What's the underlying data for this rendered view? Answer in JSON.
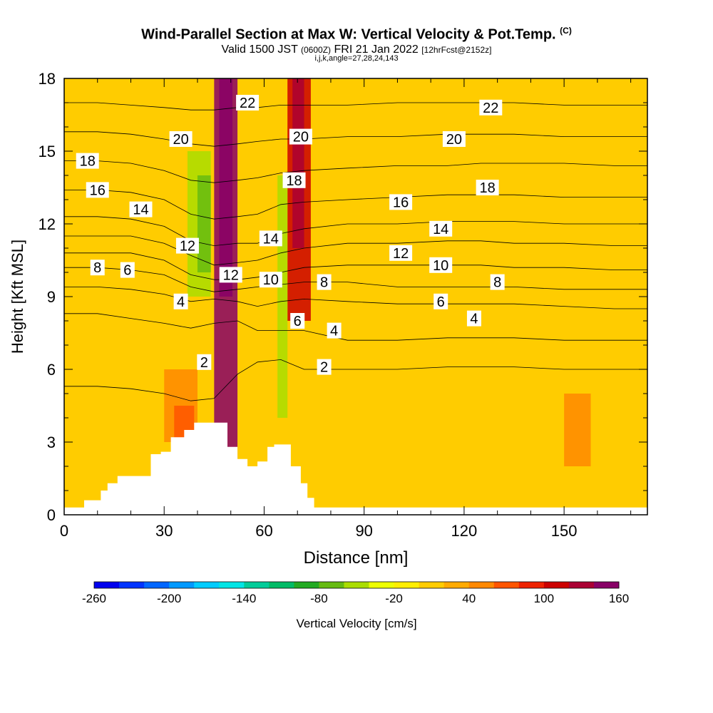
{
  "title_main": "Wind-Parallel Section at Max W: Vertical Velocity & Pot.Temp.",
  "title_mark": "(C)",
  "subtitle_a": "Valid 1500 JST",
  "subtitle_b": "(0600Z)",
  "subtitle_c": "FRI 21 Jan 2022",
  "subtitle_d": "[12hrFcst@2152z]",
  "subsub": "i,j,k,angle=27,28,24,143",
  "chart_data": {
    "type": "heatmap",
    "title": "Wind-Parallel Section at Max W: Vertical Velocity & Pot.Temp.",
    "xlabel": "Distance [nm]",
    "ylabel": "Height [Kft MSL]",
    "xlim": [
      0,
      175
    ],
    "ylim": [
      0,
      18
    ],
    "xticks": [
      0,
      30,
      60,
      90,
      120,
      150
    ],
    "yticks": [
      0,
      3,
      6,
      9,
      12,
      15,
      18
    ],
    "colorbar": {
      "label": "Vertical Velocity [cm/s]",
      "ticks": [
        -260,
        -200,
        -140,
        -80,
        -20,
        40,
        100,
        160
      ],
      "levels": [
        -260,
        -240,
        -220,
        -200,
        -180,
        -160,
        -140,
        -120,
        -100,
        -80,
        -60,
        -40,
        -20,
        0,
        20,
        40,
        60,
        80,
        100,
        120,
        140,
        160
      ],
      "colors": [
        "#0000ee",
        "#0033ff",
        "#0066ff",
        "#0099ff",
        "#00ccff",
        "#00e5e5",
        "#00cc99",
        "#00bb66",
        "#22aa22",
        "#66bb11",
        "#aadd00",
        "#eeff00",
        "#ffee00",
        "#ffcc00",
        "#ffaa00",
        "#ff8800",
        "#ff5500",
        "#ee2200",
        "#cc0000",
        "#aa0033",
        "#880066"
      ]
    },
    "terrain_profile": [
      [
        0,
        0.3
      ],
      [
        6,
        0.3
      ],
      [
        6,
        0.6
      ],
      [
        11,
        0.6
      ],
      [
        11,
        1.0
      ],
      [
        13,
        1.0
      ],
      [
        13,
        1.3
      ],
      [
        16,
        1.3
      ],
      [
        16,
        1.6
      ],
      [
        26,
        1.6
      ],
      [
        26,
        2.5
      ],
      [
        29,
        2.5
      ],
      [
        29,
        2.6
      ],
      [
        32,
        2.6
      ],
      [
        32,
        3.2
      ],
      [
        36,
        3.2
      ],
      [
        36,
        3.5
      ],
      [
        39,
        3.5
      ],
      [
        39,
        3.8
      ],
      [
        49,
        3.8
      ],
      [
        49,
        2.8
      ],
      [
        52,
        2.8
      ],
      [
        52,
        2.3
      ],
      [
        55,
        2.3
      ],
      [
        55,
        2.0
      ],
      [
        58,
        2.0
      ],
      [
        58,
        2.2
      ],
      [
        61,
        2.2
      ],
      [
        61,
        2.8
      ],
      [
        63,
        2.8
      ],
      [
        63,
        2.9
      ],
      [
        68,
        2.9
      ],
      [
        68,
        2.0
      ],
      [
        71,
        2.0
      ],
      [
        71,
        1.3
      ],
      [
        73,
        1.3
      ],
      [
        73,
        0.7
      ],
      [
        75,
        0.7
      ],
      [
        75,
        0.3
      ],
      [
        175,
        0.3
      ]
    ],
    "theta_contours": [
      {
        "value": 2,
        "y": [
          5.3,
          5.3,
          5.2,
          5.0,
          4.7,
          4.8,
          5.8,
          6.3,
          6.4,
          6.0,
          6.0,
          6.0,
          6.1,
          6.1,
          6.1,
          6.0,
          6.0,
          6.0
        ]
      },
      {
        "value": 4,
        "y": [
          8.3,
          8.3,
          8.1,
          7.9,
          7.7,
          7.9,
          8.0,
          7.6,
          7.6,
          7.6,
          7.2,
          7.2,
          7.3,
          7.3,
          7.3,
          7.2,
          7.2,
          7.2
        ]
      },
      {
        "value": 6,
        "y": [
          9.4,
          9.4,
          9.3,
          9.1,
          8.8,
          8.9,
          8.8,
          8.6,
          8.8,
          8.9,
          8.8,
          8.7,
          8.7,
          8.7,
          8.7,
          8.6,
          8.5,
          8.5
        ]
      },
      {
        "value": 8,
        "y": [
          10.2,
          10.2,
          10.1,
          9.9,
          9.4,
          9.2,
          9.3,
          9.4,
          9.5,
          9.6,
          9.6,
          9.4,
          9.4,
          9.4,
          9.4,
          9.3,
          9.3,
          9.3
        ]
      },
      {
        "value": 10,
        "y": [
          10.8,
          10.8,
          10.8,
          10.5,
          9.9,
          9.7,
          9.7,
          9.8,
          10.0,
          10.2,
          10.3,
          10.3,
          10.3,
          10.3,
          10.2,
          10.2,
          10.1,
          10.1
        ]
      },
      {
        "value": 12,
        "y": [
          11.5,
          11.5,
          11.5,
          11.2,
          10.7,
          10.3,
          10.4,
          10.5,
          10.8,
          11.0,
          11.2,
          11.2,
          11.3,
          11.3,
          11.2,
          11.2,
          11.1,
          11.1
        ]
      },
      {
        "value": 14,
        "y": [
          12.3,
          12.3,
          12.2,
          11.9,
          11.3,
          11.1,
          11.2,
          11.2,
          11.6,
          11.8,
          12.0,
          12.0,
          12.1,
          12.1,
          12.1,
          12.0,
          12.0,
          12.0
        ]
      },
      {
        "value": 16,
        "y": [
          13.4,
          13.4,
          13.3,
          13.0,
          12.4,
          12.2,
          12.3,
          12.4,
          12.8,
          12.9,
          13.0,
          13.1,
          13.2,
          13.2,
          13.2,
          13.1,
          13.1,
          13.1
        ]
      },
      {
        "value": 18,
        "y": [
          14.6,
          14.6,
          14.5,
          14.2,
          13.8,
          13.7,
          13.8,
          13.9,
          14.1,
          14.2,
          14.3,
          14.4,
          14.4,
          14.5,
          14.5,
          14.5,
          14.4,
          14.4
        ]
      },
      {
        "value": 20,
        "y": [
          15.8,
          15.8,
          15.7,
          15.5,
          15.3,
          15.2,
          15.3,
          15.4,
          15.5,
          15.5,
          15.6,
          15.6,
          15.7,
          15.7,
          15.7,
          15.6,
          15.6,
          15.6
        ]
      },
      {
        "value": 22,
        "y": [
          17.0,
          17.0,
          16.9,
          16.8,
          16.7,
          16.7,
          16.8,
          16.8,
          16.9,
          16.9,
          16.9,
          17.0,
          17.0,
          17.0,
          17.0,
          16.9,
          16.9,
          16.9
        ]
      }
    ],
    "theta_contour_x": [
      0,
      10,
      20,
      30,
      38,
      45,
      52,
      58,
      65,
      72,
      85,
      100,
      115,
      125,
      135,
      150,
      165,
      175
    ],
    "contour_labels": [
      {
        "text": "22",
        "x": 55,
        "y": 17.0
      },
      {
        "text": "22",
        "x": 128,
        "y": 16.8
      },
      {
        "text": "20",
        "x": 35,
        "y": 15.5
      },
      {
        "text": "20",
        "x": 71,
        "y": 15.6
      },
      {
        "text": "20",
        "x": 117,
        "y": 15.5
      },
      {
        "text": "18",
        "x": 7,
        "y": 14.6
      },
      {
        "text": "18",
        "x": 69,
        "y": 13.8
      },
      {
        "text": "18",
        "x": 127,
        "y": 13.5
      },
      {
        "text": "16",
        "x": 10,
        "y": 13.4
      },
      {
        "text": "16",
        "x": 101,
        "y": 12.9
      },
      {
        "text": "14",
        "x": 23,
        "y": 12.6
      },
      {
        "text": "14",
        "x": 62,
        "y": 11.4
      },
      {
        "text": "14",
        "x": 113,
        "y": 11.8
      },
      {
        "text": "12",
        "x": 37,
        "y": 11.1
      },
      {
        "text": "12",
        "x": 50,
        "y": 9.9
      },
      {
        "text": "12",
        "x": 101,
        "y": 10.8
      },
      {
        "text": "10",
        "x": 62,
        "y": 9.7
      },
      {
        "text": "10",
        "x": 113,
        "y": 10.3
      },
      {
        "text": "8",
        "x": 10,
        "y": 10.2
      },
      {
        "text": "8",
        "x": 78,
        "y": 9.6
      },
      {
        "text": "8",
        "x": 130,
        "y": 9.6
      },
      {
        "text": "6",
        "x": 19,
        "y": 10.1
      },
      {
        "text": "6",
        "x": 70,
        "y": 8.0
      },
      {
        "text": "6",
        "x": 113,
        "y": 8.8
      },
      {
        "text": "4",
        "x": 35,
        "y": 8.8
      },
      {
        "text": "4",
        "x": 81,
        "y": 7.6
      },
      {
        "text": "4",
        "x": 123,
        "y": 8.1
      },
      {
        "text": "2",
        "x": 42,
        "y": 6.3
      },
      {
        "text": "2",
        "x": 78,
        "y": 6.1
      }
    ],
    "w_features": [
      {
        "x0": 45,
        "x1": 52,
        "y0": 0,
        "y1": 18,
        "w": 140
      },
      {
        "x0": 46.5,
        "x1": 50.5,
        "y0": 9,
        "y1": 18,
        "w": 160
      },
      {
        "x0": 67,
        "x1": 74,
        "y0": 8,
        "y1": 18,
        "w": 100
      },
      {
        "x0": 68.5,
        "x1": 72,
        "y0": 11,
        "y1": 18,
        "w": 130
      },
      {
        "x0": 37,
        "x1": 44,
        "y0": 9,
        "y1": 15,
        "w": -60
      },
      {
        "x0": 40,
        "x1": 44,
        "y0": 10,
        "y1": 14,
        "w": -80
      },
      {
        "x0": 64,
        "x1": 67,
        "y0": 4,
        "y1": 14,
        "w": -60
      },
      {
        "x0": 30,
        "x1": 40,
        "y0": 3,
        "y1": 6,
        "w": 40
      },
      {
        "x0": 33,
        "x1": 39,
        "y0": 3,
        "y1": 4.5,
        "w": 60
      },
      {
        "x0": 150,
        "x1": 158,
        "y0": 2,
        "y1": 5,
        "w": 40
      }
    ]
  }
}
